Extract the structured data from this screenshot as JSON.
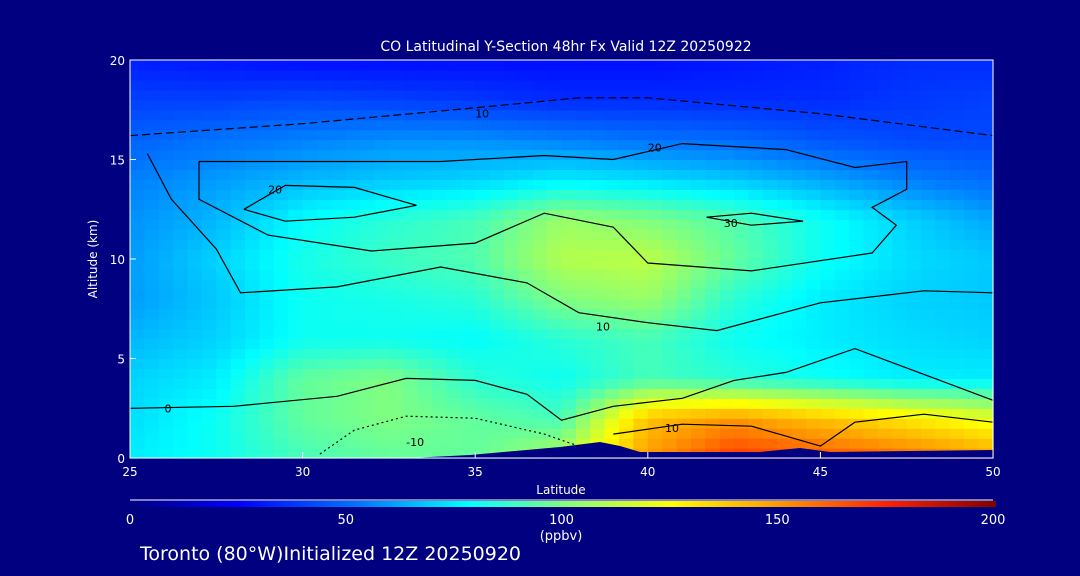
{
  "chart_data": {
    "type": "heatmap",
    "title": "CO Latitudinal Y-Section 48hr  Fx Valid 12Z 20250922",
    "xlabel": "Latitude",
    "ylabel": "Altitude (km)",
    "xlim": [
      25,
      50
    ],
    "ylim": [
      0,
      20
    ],
    "xticks": [
      "25",
      "30",
      "35",
      "40",
      "45",
      "50"
    ],
    "yticks": [
      "0",
      "5",
      "10",
      "15",
      "20"
    ],
    "lat": [
      25,
      27.5,
      30,
      32.5,
      35,
      37.5,
      40,
      42.5,
      45,
      47.5,
      50
    ],
    "alt": [
      0,
      2,
      4,
      6,
      8,
      10,
      12,
      14,
      16,
      18,
      20
    ],
    "values": [
      [
        75,
        80,
        90,
        95,
        95,
        110,
        150,
        170,
        165,
        160,
        150
      ],
      [
        72,
        80,
        95,
        100,
        95,
        90,
        140,
        150,
        140,
        130,
        120
      ],
      [
        70,
        75,
        95,
        100,
        85,
        80,
        90,
        85,
        80,
        75,
        75
      ],
      [
        65,
        70,
        80,
        80,
        78,
        85,
        90,
        80,
        75,
        72,
        70
      ],
      [
        60,
        68,
        80,
        82,
        85,
        100,
        105,
        85,
        75,
        70,
        68
      ],
      [
        60,
        70,
        82,
        88,
        92,
        110,
        112,
        95,
        80,
        72,
        68
      ],
      [
        58,
        65,
        78,
        85,
        90,
        105,
        100,
        92,
        80,
        70,
        62
      ],
      [
        55,
        60,
        65,
        68,
        70,
        75,
        72,
        68,
        62,
        55,
        50
      ],
      [
        48,
        52,
        55,
        58,
        58,
        55,
        52,
        50,
        45,
        42,
        42
      ],
      [
        40,
        40,
        42,
        40,
        38,
        35,
        35,
        35,
        35,
        38,
        40
      ],
      [
        32,
        30,
        28,
        28,
        28,
        28,
        28,
        30,
        32,
        35,
        35
      ]
    ],
    "colorbar": {
      "min": 0,
      "max": 200,
      "ticks": [
        "0",
        "50",
        "100",
        "150",
        "200"
      ],
      "unit": "(ppbv)"
    },
    "colormap": [
      [
        0,
        "#000080"
      ],
      [
        25,
        "#0000ff"
      ],
      [
        55,
        "#0080ff"
      ],
      [
        78,
        "#00ffff"
      ],
      [
        100,
        "#80ff80"
      ],
      [
        125,
        "#ffff00"
      ],
      [
        150,
        "#ff9900"
      ],
      [
        175,
        "#ff2000"
      ],
      [
        200,
        "#800000"
      ]
    ],
    "contours": [
      {
        "label": "10",
        "style": "dashed",
        "points": [
          [
            25,
            16.2
          ],
          [
            30,
            16.8
          ],
          [
            35,
            17.6
          ],
          [
            38,
            18.1
          ],
          [
            40,
            18.1
          ],
          [
            45,
            17.3
          ],
          [
            50,
            16.2
          ]
        ],
        "label_at": [
          35,
          17.3
        ]
      },
      {
        "label": "20",
        "style": "solid",
        "points": [
          [
            28.3,
            12.5
          ],
          [
            29.5,
            13.7
          ],
          [
            31.5,
            13.6
          ],
          [
            33.3,
            12.7
          ],
          [
            31.5,
            12.1
          ],
          [
            29.5,
            11.9
          ],
          [
            28.3,
            12.5
          ]
        ],
        "label_at": [
          29,
          13.5
        ]
      },
      {
        "label": "10",
        "style": "solid",
        "points": [
          [
            25.5,
            15.3
          ],
          [
            26.2,
            13
          ],
          [
            27.5,
            10.5
          ],
          [
            28.2,
            8.3
          ],
          [
            31,
            8.6
          ],
          [
            34,
            9.6
          ],
          [
            36.5,
            8.8
          ],
          [
            38,
            7.3
          ],
          [
            40,
            6.8
          ],
          [
            42,
            6.4
          ],
          [
            45,
            7.8
          ],
          [
            48,
            8.4
          ],
          [
            50,
            8.3
          ]
        ],
        "label_at": [
          38.5,
          6.6
        ]
      },
      {
        "label": "20",
        "style": "solid",
        "points": [
          [
            27,
            14.9
          ],
          [
            27,
            13
          ],
          [
            29,
            11.2
          ],
          [
            32,
            10.4
          ],
          [
            35,
            10.8
          ],
          [
            37,
            12.3
          ],
          [
            39,
            11.6
          ],
          [
            40,
            9.8
          ],
          [
            43,
            9.4
          ],
          [
            46.5,
            10.3
          ],
          [
            47.2,
            11.7
          ],
          [
            46.5,
            12.6
          ],
          [
            47.5,
            13.5
          ],
          [
            47.5,
            14.9
          ],
          [
            46,
            14.6
          ],
          [
            44,
            15.5
          ],
          [
            41,
            15.8
          ],
          [
            39,
            15
          ],
          [
            37,
            15.2
          ],
          [
            34,
            14.9
          ],
          [
            30,
            14.9
          ],
          [
            27,
            14.9
          ]
        ],
        "label_at": [
          40,
          15.6
        ]
      },
      {
        "label": "30",
        "style": "solid",
        "points": [
          [
            41.7,
            12.1
          ],
          [
            43,
            12.3
          ],
          [
            44.5,
            11.9
          ],
          [
            43,
            11.7
          ],
          [
            41.7,
            12.1
          ]
        ],
        "label_at": [
          42.2,
          11.8
        ]
      },
      {
        "label": "10",
        "style": "solid",
        "points": [
          [
            39,
            1.2
          ],
          [
            41,
            1.7
          ],
          [
            43,
            1.6
          ],
          [
            44,
            1.1
          ],
          [
            45,
            0.6
          ],
          [
            46,
            1.8
          ],
          [
            48,
            2.2
          ],
          [
            50,
            1.8
          ]
        ],
        "label_at": [
          40.5,
          1.5
        ]
      },
      {
        "label": "0",
        "style": "solid",
        "points": [
          [
            25,
            2.5
          ],
          [
            28,
            2.6
          ],
          [
            31,
            3.1
          ],
          [
            33,
            4
          ],
          [
            35,
            3.9
          ],
          [
            36.5,
            3.2
          ],
          [
            37.5,
            1.9
          ],
          [
            39,
            2.6
          ],
          [
            41,
            3
          ],
          [
            42.5,
            3.9
          ],
          [
            44,
            4.3
          ],
          [
            46,
            5.5
          ],
          [
            48,
            4.2
          ],
          [
            50,
            2.9
          ]
        ],
        "label_at": [
          26,
          2.5
        ]
      },
      {
        "label": "-10",
        "style": "dotted",
        "points": [
          [
            30.5,
            0.2
          ],
          [
            31.5,
            1.4
          ],
          [
            33,
            2.1
          ],
          [
            35,
            2
          ],
          [
            37,
            1.2
          ],
          [
            38,
            0.6
          ]
        ],
        "label_at": [
          33,
          0.8
        ]
      }
    ]
  },
  "footer": {
    "location": "Toronto (80°W)Initialized 12Z 20250920"
  }
}
